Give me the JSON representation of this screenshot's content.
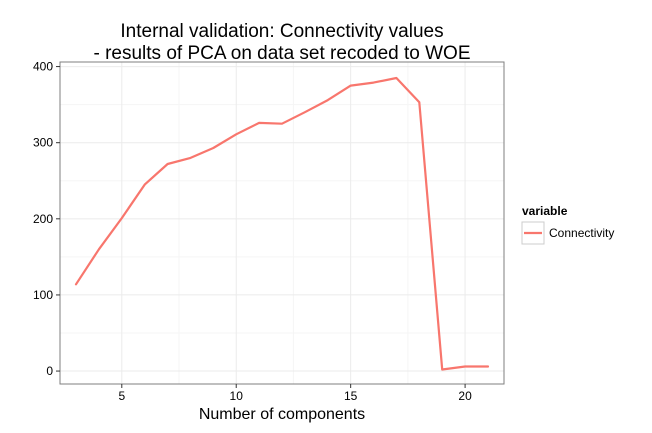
{
  "chart_data": {
    "type": "line",
    "title_line1": "Internal validation: Connectivity values",
    "title_line2": "- results of PCA on data set recoded to WOE",
    "xlabel": "Number of components",
    "ylabel": "",
    "xlim": [
      2.3,
      21.7
    ],
    "ylim": [
      -17,
      406
    ],
    "x_ticks": [
      5,
      10,
      15,
      20
    ],
    "y_ticks": [
      0,
      100,
      200,
      300,
      400
    ],
    "grid": "on",
    "legend": {
      "title": "variable",
      "placement": "right",
      "entries": [
        "Connectivity"
      ]
    },
    "series": [
      {
        "name": "Connectivity",
        "color": "#F8766D",
        "x": [
          3,
          4,
          5,
          6,
          7,
          8,
          9,
          10,
          11,
          12,
          13,
          14,
          15,
          16,
          17,
          18,
          19,
          20,
          21
        ],
        "y": [
          114,
          160,
          201,
          245,
          272,
          280,
          293,
          311,
          326,
          325,
          340,
          356,
          375,
          379,
          385,
          353,
          2,
          6,
          6
        ]
      }
    ]
  },
  "colors": {
    "panel_border": "#7f7f7f",
    "major_grid": "#ebebeb",
    "minor_grid": "#f5f5f5",
    "series_line": "#F8766D"
  }
}
